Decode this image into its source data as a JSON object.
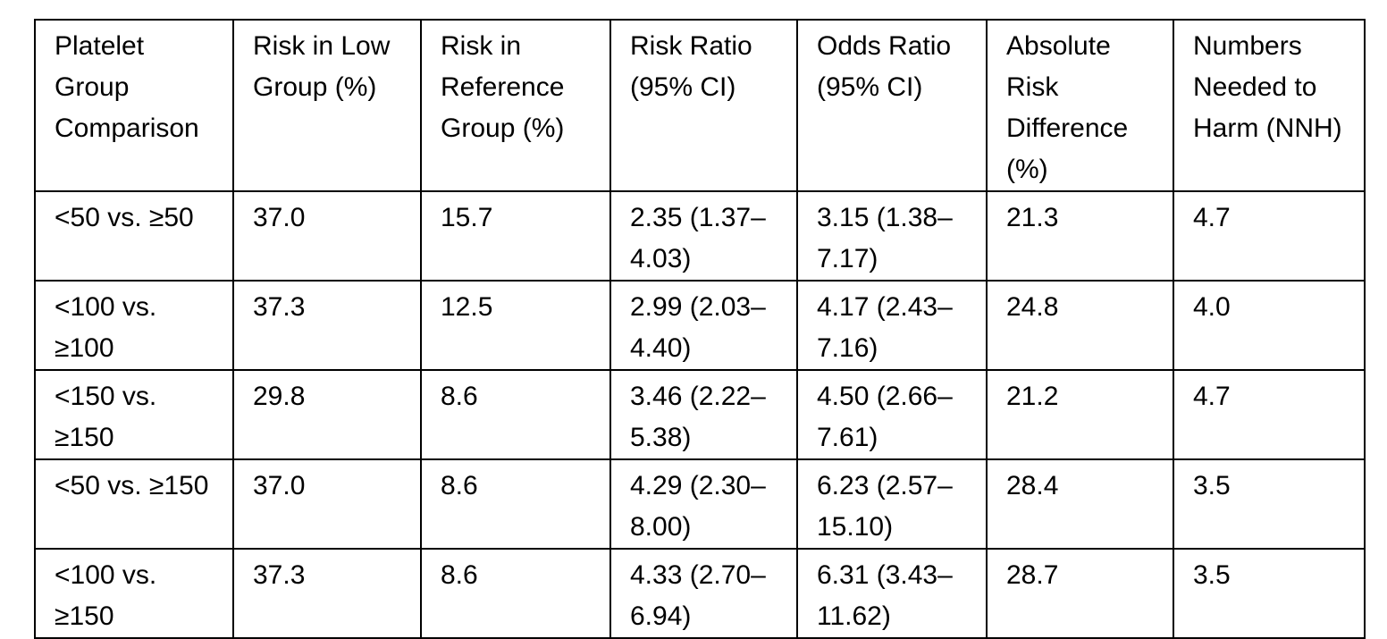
{
  "table": {
    "headers": [
      "Platelet Group Comparison",
      "Risk in Low Group (%)",
      "Risk in Reference Group (%)",
      "Risk Ratio (95% CI)",
      "Odds Ratio (95% CI)",
      "Absolute Risk Difference (%)",
      "Numbers Needed to Harm (NNH)"
    ],
    "rows": [
      [
        "<50 vs. ≥50",
        "37.0",
        "15.7",
        "2.35 (1.37–4.03)",
        "3.15 (1.38–7.17)",
        "21.3",
        "4.7"
      ],
      [
        "<100 vs. ≥100",
        "37.3",
        "12.5",
        "2.99 (2.03–4.40)",
        "4.17 (2.43–7.16)",
        "24.8",
        "4.0"
      ],
      [
        "<150 vs. ≥150",
        "29.8",
        "8.6",
        "3.46 (2.22–5.38)",
        "4.50 (2.66–7.61)",
        "21.2",
        "4.7"
      ],
      [
        "<50 vs. ≥150",
        "37.0",
        "8.6",
        "4.29 (2.30–8.00)",
        "6.23 (2.57–15.10)",
        "28.4",
        "3.5"
      ],
      [
        "<100 vs. ≥150",
        "37.3",
        "8.6",
        "4.33 (2.70–6.94)",
        "6.31 (3.43–11.62)",
        "28.7",
        "3.5"
      ]
    ]
  }
}
